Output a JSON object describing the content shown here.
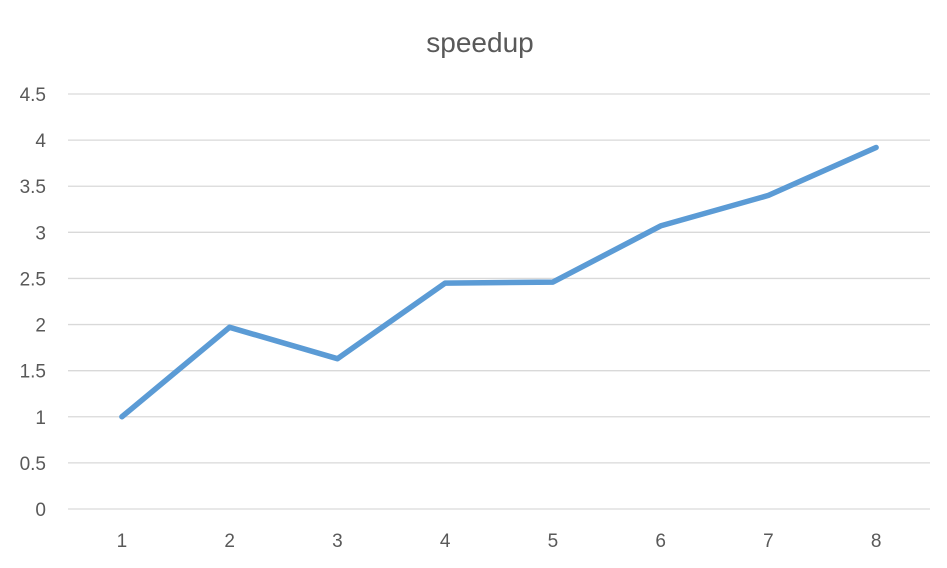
{
  "chart_data": {
    "type": "line",
    "title": "speedup",
    "xlabel": "",
    "ylabel": "",
    "categories": [
      "1",
      "2",
      "3",
      "4",
      "5",
      "6",
      "7",
      "8"
    ],
    "series": [
      {
        "values": [
          1.0,
          1.97,
          1.63,
          2.45,
          2.46,
          3.07,
          3.4,
          3.92
        ],
        "color": "#5b9bd5"
      }
    ],
    "ylim": [
      0,
      4.5
    ],
    "yticks": [
      "0",
      "0.5",
      "1",
      "1.5",
      "2",
      "2.5",
      "3",
      "3.5",
      "4",
      "4.5"
    ],
    "grid": true,
    "legend": "none"
  }
}
